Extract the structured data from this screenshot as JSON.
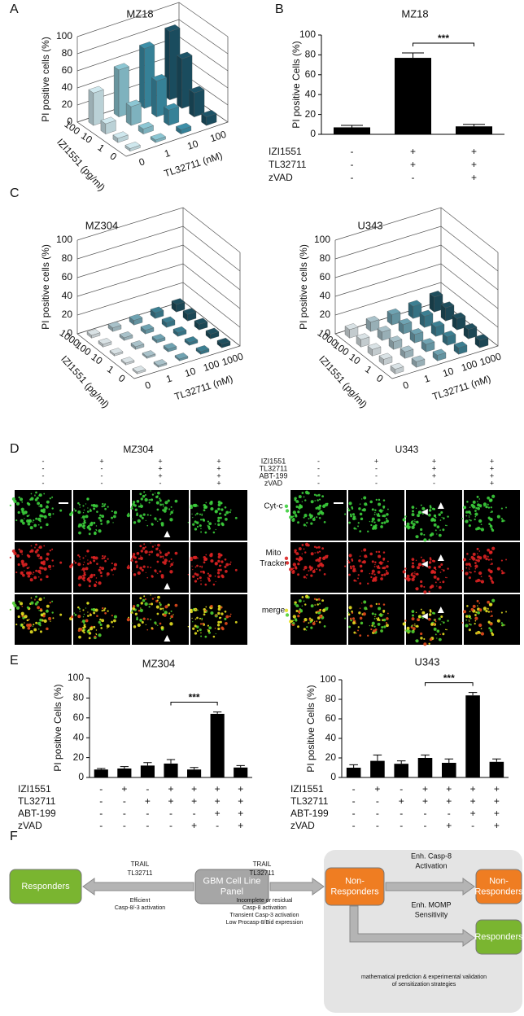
{
  "panels": [
    "A",
    "B",
    "C",
    "D",
    "E",
    "F"
  ],
  "chart_data": [
    {
      "type": "bar3d",
      "title": "MZ18",
      "ylabel": "PI positive cells (%)",
      "xlabel": "TL32711 (nM)",
      "zlabel": "IZI1551 (pg/ml)",
      "x_categories": [
        "0",
        "1",
        "10",
        "100"
      ],
      "z_categories": [
        "0",
        "1",
        "10",
        "100"
      ],
      "values": [
        [
          3,
          3,
          5,
          10
        ],
        [
          5,
          6,
          18,
          28
        ],
        [
          12,
          22,
          42,
          58
        ],
        [
          38,
          55,
          70,
          80
        ]
      ],
      "colors": [
        "#cfe8ee",
        "#8cc6d3",
        "#3c8fa8",
        "#1d5468"
      ],
      "ylim": [
        0,
        100
      ],
      "yticks": [
        0,
        20,
        40,
        60,
        80,
        100
      ]
    },
    {
      "type": "bar",
      "title": "MZ18",
      "ylabel": "PI positive Cells (%)",
      "values": [
        7,
        77,
        8
      ],
      "errors": [
        2,
        5,
        2
      ],
      "color": "#000000",
      "ylim": [
        0,
        100
      ],
      "yticks": [
        0,
        20,
        40,
        60,
        80,
        100
      ],
      "annotation": {
        "from": 1,
        "to": 2,
        "label": "***"
      },
      "conditions": [
        {
          "name": "IZI1551",
          "values": [
            "-",
            "+",
            "+"
          ]
        },
        {
          "name": "TL32711",
          "values": [
            "-",
            "+",
            "+"
          ]
        },
        {
          "name": "zVAD",
          "values": [
            "-",
            "-",
            "+"
          ]
        }
      ]
    },
    {
      "type": "bar3d",
      "title": "MZ304",
      "ylabel": "PI positive cells (%)",
      "xlabel": "TL32711 (nM)",
      "zlabel": "IZI1551 (pg/ml)",
      "x_categories": [
        "0",
        "1",
        "10",
        "100",
        "1000"
      ],
      "z_categories": [
        "0",
        "1",
        "10",
        "100",
        "1000"
      ],
      "values": [
        [
          2,
          2,
          2,
          3,
          4
        ],
        [
          2,
          2,
          3,
          3,
          5
        ],
        [
          2,
          3,
          3,
          4,
          6
        ],
        [
          3,
          3,
          4,
          5,
          7
        ],
        [
          3,
          4,
          5,
          6,
          8
        ]
      ],
      "colors": [
        "#d9e2e5",
        "#a9c2ca",
        "#6fa3b2",
        "#3c7f92",
        "#1f4f5e"
      ],
      "ylim": [
        0,
        100
      ],
      "yticks": [
        0,
        20,
        40,
        60,
        80,
        100
      ]
    },
    {
      "type": "bar3d",
      "title": "U343",
      "ylabel": "PI positive cells (%)",
      "xlabel": "TL32711 (nM)",
      "zlabel": "IZI1551 (pg/ml)",
      "x_categories": [
        "0",
        "1",
        "10",
        "100",
        "1000"
      ],
      "z_categories": [
        "0",
        "1",
        "10",
        "100",
        "1000"
      ],
      "values": [
        [
          5,
          6,
          6,
          7,
          8
        ],
        [
          6,
          7,
          8,
          9,
          10
        ],
        [
          7,
          8,
          9,
          10,
          12
        ],
        [
          8,
          9,
          10,
          12,
          14
        ],
        [
          9,
          10,
          11,
          13,
          16
        ]
      ],
      "colors": [
        "#d9e2e5",
        "#a9c2ca",
        "#6fa3b2",
        "#3c7f92",
        "#1f4f5e"
      ],
      "ylim": [
        0,
        100
      ],
      "yticks": [
        0,
        20,
        40,
        60,
        80,
        100
      ]
    },
    {
      "type": "bar",
      "title": "MZ304",
      "ylabel": "PI positive Cells (%)",
      "values": [
        8,
        9,
        12,
        14,
        8,
        64,
        10
      ],
      "errors": [
        1,
        2,
        3,
        4,
        2,
        2,
        2
      ],
      "color": "#000000",
      "ylim": [
        0,
        100
      ],
      "yticks": [
        0,
        20,
        40,
        60,
        80,
        100
      ],
      "annotation": {
        "from": 3,
        "to": 5,
        "label": "***"
      },
      "conditions": [
        {
          "name": "IZI1551",
          "values": [
            "-",
            "+",
            "-",
            "+",
            "+",
            "+",
            "+"
          ]
        },
        {
          "name": "TL32711",
          "values": [
            "-",
            "-",
            "+",
            "+",
            "+",
            "+",
            "+"
          ]
        },
        {
          "name": "ABT-199",
          "values": [
            "-",
            "-",
            "-",
            "-",
            "-",
            "+",
            "+"
          ]
        },
        {
          "name": "zVAD",
          "values": [
            "-",
            "-",
            "-",
            "-",
            "+",
            "-",
            "+"
          ]
        }
      ]
    },
    {
      "type": "bar",
      "title": "U343",
      "ylabel": "PI positive Cells (%)",
      "values": [
        10,
        17,
        14,
        20,
        15,
        84,
        16
      ],
      "errors": [
        3,
        6,
        3,
        3,
        4,
        3,
        3
      ],
      "color": "#000000",
      "ylim": [
        0,
        100
      ],
      "yticks": [
        0,
        20,
        40,
        60,
        80,
        100
      ],
      "annotation": {
        "from": 3,
        "to": 5,
        "label": "***"
      },
      "conditions": [
        {
          "name": "IZI1551",
          "values": [
            "-",
            "+",
            "-",
            "+",
            "+",
            "+",
            "+"
          ]
        },
        {
          "name": "TL32711",
          "values": [
            "-",
            "-",
            "+",
            "+",
            "+",
            "+",
            "+"
          ]
        },
        {
          "name": "ABT-199",
          "values": [
            "-",
            "-",
            "-",
            "-",
            "-",
            "+",
            "+"
          ]
        },
        {
          "name": "zVAD",
          "values": [
            "-",
            "-",
            "-",
            "-",
            "+",
            "-",
            "+"
          ]
        }
      ]
    }
  ],
  "microscopy": {
    "titles": [
      "MZ304",
      "U343"
    ],
    "conditions": [
      {
        "name": "IZI1551",
        "values": [
          "-",
          "+",
          "+",
          "+"
        ]
      },
      {
        "name": "TL32711",
        "values": [
          "-",
          "-",
          "+",
          "+"
        ]
      },
      {
        "name": "ABT-199",
        "values": [
          "-",
          "-",
          "+",
          "+"
        ]
      },
      {
        "name": "zVAD",
        "values": [
          "-",
          "-",
          "-",
          "+"
        ]
      }
    ],
    "channels": [
      [
        "Cyt-c"
      ],
      [
        "Mito",
        "Tracker"
      ],
      [
        "merge"
      ]
    ]
  },
  "diagram": {
    "nodes": [
      {
        "lines": [
          "Responders"
        ]
      },
      {
        "lines": [
          "GBM Cell Line",
          "Panel"
        ]
      },
      {
        "lines": [
          "Non-",
          "Responders"
        ]
      },
      {
        "lines": [
          "Non-",
          "Responders"
        ]
      },
      {
        "lines": [
          "Responders"
        ]
      }
    ],
    "labels": [
      {
        "lines": [
          "TRAIL",
          "TL32711"
        ]
      },
      {
        "lines": [
          "Efficient",
          "Casp-8/-3 activation"
        ]
      },
      {
        "lines": [
          "TRAIL",
          "TL32711"
        ]
      },
      {
        "lines": [
          "Incomplete or residual",
          "Casp-8 activation",
          "Transient Casp-3 activation",
          "Low Procasp-8/Bid expression"
        ]
      },
      {
        "lines": [
          "Enh. Casp-8",
          "Activation"
        ]
      },
      {
        "lines": [
          "Enh. MOMP",
          "Sensitivity"
        ]
      },
      {
        "lines": [
          "mathematical prediction & experimental validation",
          "of sensitization strategies"
        ]
      }
    ]
  }
}
